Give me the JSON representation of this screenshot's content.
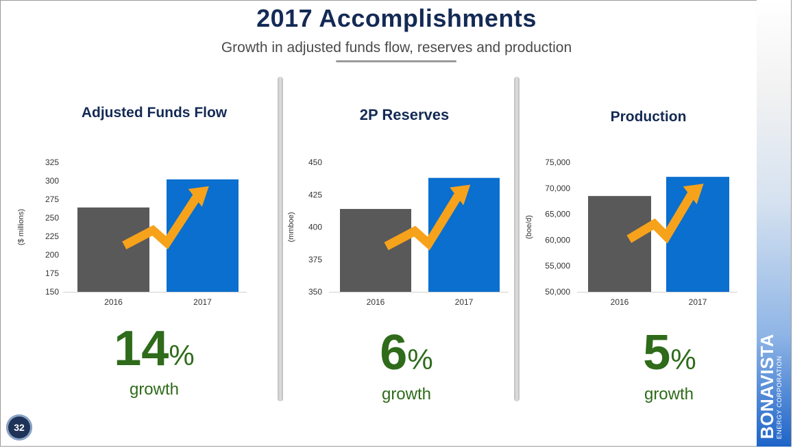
{
  "slide": {
    "title": "2017 Accomplishments",
    "subtitle": "Growth in adjusted funds flow, reserves and production",
    "page_number": "32",
    "brand_name": "BONAVISTA",
    "brand_sub": "ENERGY CORPORATION"
  },
  "colors": {
    "title": "#142a55",
    "bar_2016": "#595959",
    "bar_2017": "#0a6fce",
    "arrow": "#f7a21b",
    "growth": "#2e6b1a"
  },
  "chart_data": [
    {
      "type": "bar",
      "title": "Adjusted Funds Flow",
      "ylabel": "($ millions)",
      "categories": [
        "2016",
        "2017"
      ],
      "values": [
        264,
        302
      ],
      "ylim": [
        150,
        325
      ],
      "yticks": [
        "150",
        "175",
        "200",
        "225",
        "250",
        "275",
        "300",
        "325"
      ],
      "ytick_values": [
        150,
        175,
        200,
        225,
        250,
        275,
        300,
        325
      ],
      "growth_number": "14",
      "growth_symbol": "%",
      "growth_word": "growth"
    },
    {
      "type": "bar",
      "title": "2P Reserves",
      "ylabel": "(mmboe)",
      "categories": [
        "2016",
        "2017"
      ],
      "values": [
        414,
        438
      ],
      "ylim": [
        350,
        450
      ],
      "yticks": [
        "350",
        "375",
        "400",
        "425",
        "450"
      ],
      "ytick_values": [
        350,
        375,
        400,
        425,
        450
      ],
      "growth_number": "6",
      "growth_symbol": "%",
      "growth_word": "growth"
    },
    {
      "type": "bar",
      "title": "Production",
      "ylabel": "(boe/d)",
      "categories": [
        "2016",
        "2017"
      ],
      "values": [
        68500,
        72200
      ],
      "ylim": [
        50000,
        75000
      ],
      "yticks": [
        "50,000",
        "55,000",
        "60,000",
        "65,000",
        "70,000",
        "75,000"
      ],
      "ytick_values": [
        50000,
        55000,
        60000,
        65000,
        70000,
        75000
      ],
      "growth_number": "5",
      "growth_symbol": "%",
      "growth_word": "growth"
    }
  ]
}
